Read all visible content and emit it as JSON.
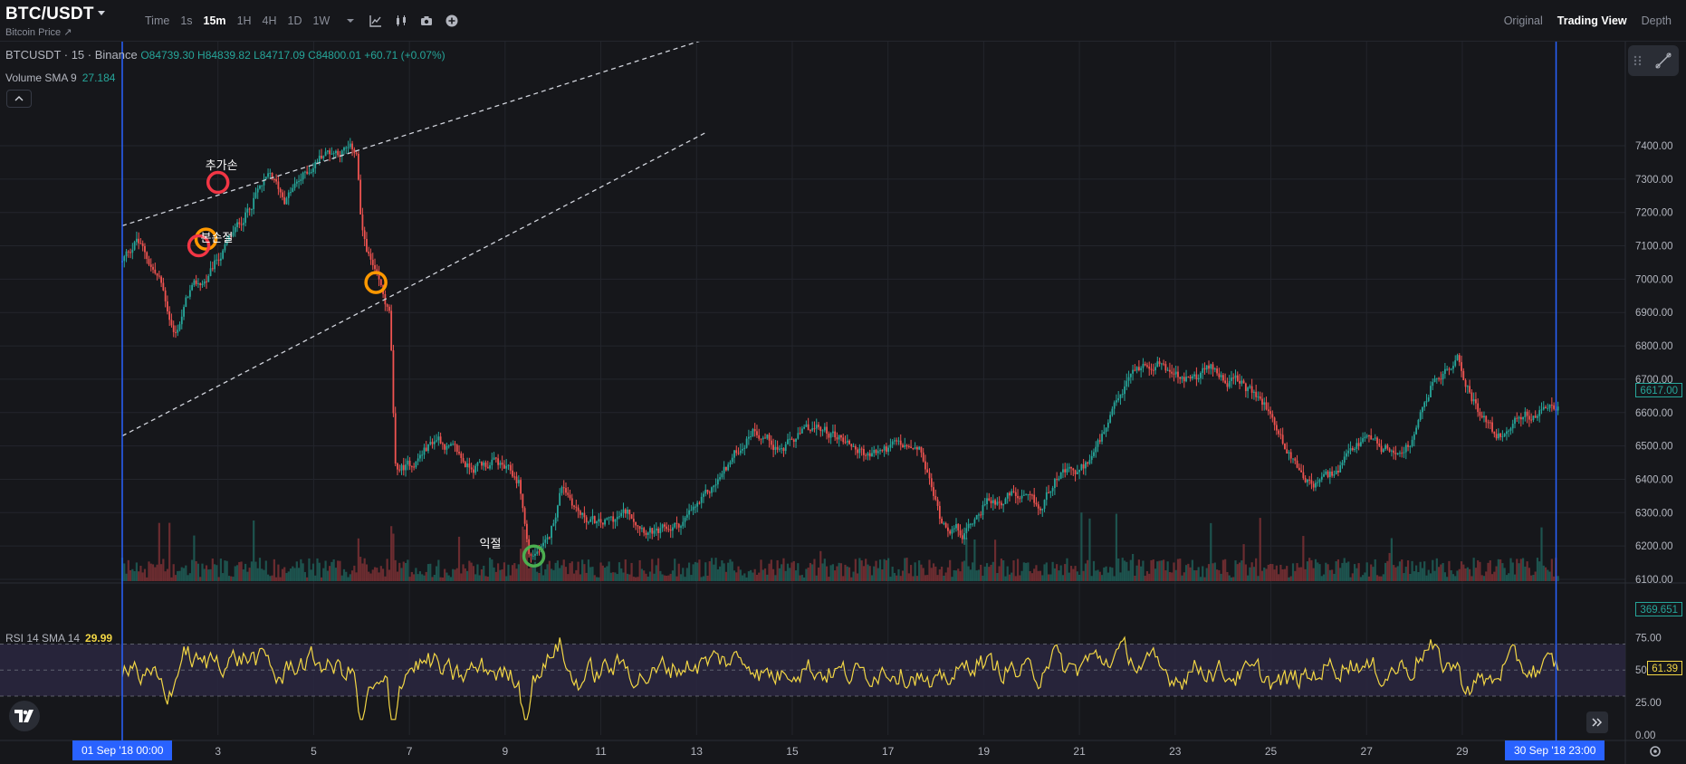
{
  "header": {
    "symbol": "BTC/USDT",
    "subtitle": "Bitcoin Price ↗",
    "intervals": [
      "Time",
      "1s",
      "15m",
      "1H",
      "4H",
      "1D",
      "1W"
    ],
    "active_interval": "15m",
    "views": [
      "Original",
      "Trading View",
      "Depth"
    ],
    "active_view": "Trading View"
  },
  "legend": {
    "title": "BTCUSDT · 15 · Binance",
    "ohlc": "O84739.30 H84839.82 L84717.09 C84800.01 +60.71 (+0.07%)",
    "volume_label": "Volume SMA 9",
    "volume_value": "27.184",
    "rsi_label": "RSI 14 SMA 14",
    "rsi_value": "29.99"
  },
  "price_axis": {
    "ticks": [
      "7400.00",
      "7300.00",
      "7200.00",
      "7100.00",
      "7000.00",
      "6900.00",
      "6800.00",
      "6700.00",
      "6600.00",
      "6500.00",
      "6400.00",
      "6300.00",
      "6200.00",
      "6100.00"
    ],
    "current_price": "6617.00",
    "volume_tag": "369.651"
  },
  "rsi_axis": {
    "ticks": [
      "75.00",
      "50.00",
      "25.00",
      "0.00"
    ],
    "current": "61.39"
  },
  "time_axis": {
    "ticks": [
      "3",
      "5",
      "7",
      "9",
      "11",
      "13",
      "15",
      "17",
      "19",
      "21",
      "23",
      "25",
      "27",
      "29"
    ],
    "start_label": "01 Sep '18   00:00",
    "end_label": "30 Sep '18   23:00"
  },
  "annotations": [
    {
      "label": "추가손",
      "color": "#f23645"
    },
    {
      "label": "본손절",
      "color": "#ff9800"
    },
    {
      "label": "",
      "color": "#f23645"
    },
    {
      "label": "",
      "color": "#ff9800"
    },
    {
      "label": "익절",
      "color": "#4caf50"
    }
  ],
  "chart_data": {
    "type": "candlestick",
    "title": "",
    "symbol": "BTCUSDT",
    "interval": "15",
    "exchange": "Binance",
    "x_range": [
      "01 Sep '18 00:00",
      "30 Sep '18 23:00"
    ],
    "ylim": [
      6020,
      7480
    ],
    "price_path": [
      {
        "day": 1.0,
        "price": 7050
      },
      {
        "day": 1.3,
        "price": 7120
      },
      {
        "day": 1.8,
        "price": 6990
      },
      {
        "day": 2.1,
        "price": 6830
      },
      {
        "day": 2.4,
        "price": 6960
      },
      {
        "day": 2.8,
        "price": 7000
      },
      {
        "day": 3.0,
        "price": 7060
      },
      {
        "day": 3.4,
        "price": 7150
      },
      {
        "day": 3.8,
        "price": 7260
      },
      {
        "day": 4.1,
        "price": 7300
      },
      {
        "day": 4.4,
        "price": 7240
      },
      {
        "day": 4.8,
        "price": 7310
      },
      {
        "day": 5.2,
        "price": 7380
      },
      {
        "day": 5.6,
        "price": 7390
      },
      {
        "day": 5.9,
        "price": 7380
      },
      {
        "day": 6.0,
        "price": 7140
      },
      {
        "day": 6.3,
        "price": 7000
      },
      {
        "day": 6.6,
        "price": 6880
      },
      {
        "day": 6.7,
        "price": 6420
      },
      {
        "day": 7.0,
        "price": 6440
      },
      {
        "day": 7.6,
        "price": 6530
      },
      {
        "day": 8.2,
        "price": 6440
      },
      {
        "day": 8.8,
        "price": 6450
      },
      {
        "day": 9.3,
        "price": 6390
      },
      {
        "day": 9.5,
        "price": 6170
      },
      {
        "day": 9.9,
        "price": 6200
      },
      {
        "day": 10.2,
        "price": 6390
      },
      {
        "day": 10.6,
        "price": 6290
      },
      {
        "day": 11.0,
        "price": 6260
      },
      {
        "day": 11.6,
        "price": 6300
      },
      {
        "day": 12.2,
        "price": 6230
      },
      {
        "day": 12.7,
        "price": 6270
      },
      {
        "day": 13.2,
        "price": 6340
      },
      {
        "day": 13.7,
        "price": 6450
      },
      {
        "day": 14.2,
        "price": 6560
      },
      {
        "day": 14.8,
        "price": 6490
      },
      {
        "day": 15.4,
        "price": 6550
      },
      {
        "day": 16.0,
        "price": 6530
      },
      {
        "day": 16.6,
        "price": 6470
      },
      {
        "day": 17.2,
        "price": 6500
      },
      {
        "day": 17.7,
        "price": 6470
      },
      {
        "day": 18.1,
        "price": 6280
      },
      {
        "day": 18.6,
        "price": 6240
      },
      {
        "day": 19.0,
        "price": 6330
      },
      {
        "day": 19.6,
        "price": 6350
      },
      {
        "day": 20.2,
        "price": 6300
      },
      {
        "day": 20.5,
        "price": 6420
      },
      {
        "day": 21.0,
        "price": 6410
      },
      {
        "day": 21.6,
        "price": 6550
      },
      {
        "day": 22.1,
        "price": 6720
      },
      {
        "day": 22.6,
        "price": 6760
      },
      {
        "day": 23.2,
        "price": 6690
      },
      {
        "day": 23.8,
        "price": 6730
      },
      {
        "day": 24.4,
        "price": 6680
      },
      {
        "day": 24.9,
        "price": 6620
      },
      {
        "day": 25.4,
        "price": 6470
      },
      {
        "day": 25.9,
        "price": 6380
      },
      {
        "day": 26.4,
        "price": 6420
      },
      {
        "day": 26.9,
        "price": 6510
      },
      {
        "day": 27.5,
        "price": 6480
      },
      {
        "day": 28.0,
        "price": 6520
      },
      {
        "day": 28.4,
        "price": 6700
      },
      {
        "day": 28.9,
        "price": 6750
      },
      {
        "day": 29.2,
        "price": 6650
      },
      {
        "day": 29.7,
        "price": 6520
      },
      {
        "day": 30.2,
        "price": 6590
      },
      {
        "day": 30.7,
        "price": 6600
      },
      {
        "day": 31.0,
        "price": 6617
      }
    ],
    "trendlines": [
      {
        "from": {
          "day": 1.0,
          "price": 7160
        },
        "to": {
          "day": 13.2,
          "price": 7720
        }
      },
      {
        "from": {
          "day": 1.0,
          "price": 6530
        },
        "to": {
          "day": 13.2,
          "price": 7440
        }
      }
    ],
    "markers": [
      {
        "day": 3.0,
        "price": 7290,
        "label": "추가손"
      },
      {
        "day": 2.75,
        "price": 7120,
        "label": "본손절"
      },
      {
        "day": 2.6,
        "price": 7100,
        "label": ""
      },
      {
        "day": 6.3,
        "price": 6990,
        "label": ""
      },
      {
        "day": 9.6,
        "price": 6170,
        "label": "익절"
      }
    ],
    "volume": {
      "label": "Volume SMA 9",
      "sma": 27.184,
      "last": 369.651
    },
    "rsi": {
      "label": "RSI 14 SMA 14",
      "sma": 29.99,
      "last": 61.39,
      "upper_band": 70,
      "lower_band": 30,
      "ylim": [
        0,
        85
      ]
    }
  }
}
